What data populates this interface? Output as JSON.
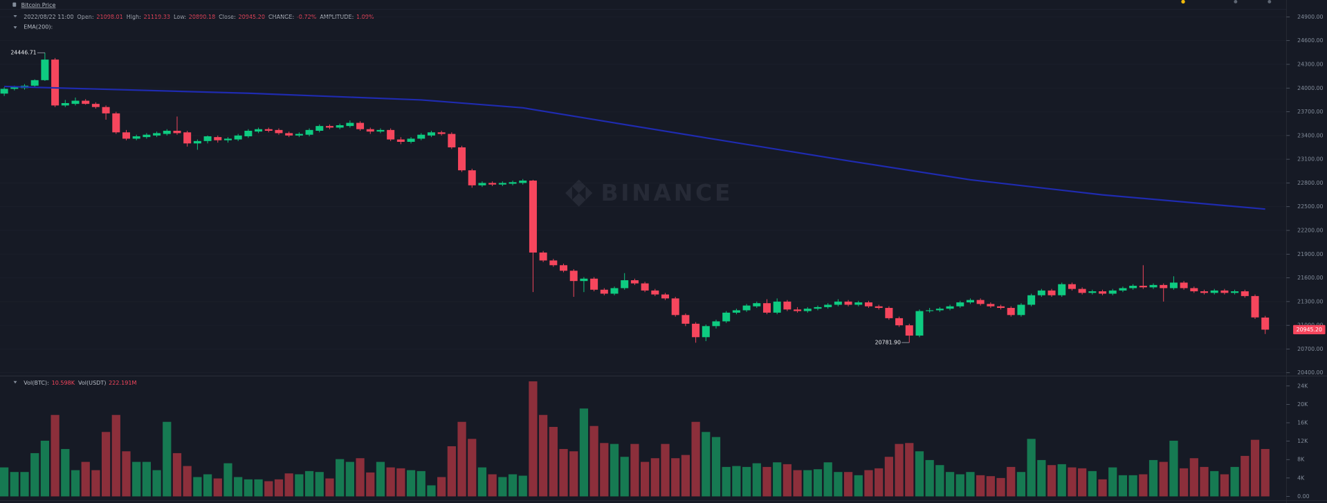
{
  "header": {
    "title": "Bitcoin Price",
    "datetime": "2022/08/22 11:00",
    "fields": [
      {
        "label": "Open:",
        "value": "21098.01"
      },
      {
        "label": "High:",
        "value": "21119.33"
      },
      {
        "label": "Low:",
        "value": "20890.18"
      },
      {
        "label": "Close:",
        "value": "20945.20"
      },
      {
        "label": "CHANGE:",
        "value": "-0.72%"
      },
      {
        "label": "AMPLITUDE:",
        "value": "1.09%"
      }
    ],
    "indicator": "EMA(200):",
    "watermark": "BINANCE"
  },
  "chart_data": [
    {
      "type": "candlestick",
      "up_color": "#0ecb81",
      "down_color": "#f6465d",
      "ylim": [
        20370,
        24985
      ],
      "yticks": [
        {
          "value": 20400,
          "label": "20400.00"
        },
        {
          "value": 20700,
          "label": "20700.00"
        },
        {
          "value": 21000,
          "label": "21000.00"
        },
        {
          "value": 21300,
          "label": "21300.00"
        },
        {
          "value": 21600,
          "label": "21600.00"
        },
        {
          "value": 21900,
          "label": "21900.00"
        },
        {
          "value": 22200,
          "label": "22200.00"
        },
        {
          "value": 22500,
          "label": "22500.00"
        },
        {
          "value": 22800,
          "label": "22800.00"
        },
        {
          "value": 23100,
          "label": "23100.00"
        },
        {
          "value": 23400,
          "label": "23400.00"
        },
        {
          "value": 23700,
          "label": "23700.00"
        },
        {
          "value": 24000,
          "label": "24000.00"
        },
        {
          "value": 24300,
          "label": "24300.00"
        },
        {
          "value": 24600,
          "label": "24600.00"
        },
        {
          "value": 24900,
          "label": "24900.00"
        }
      ],
      "grid": true,
      "candles": [
        [
          23930,
          24010,
          23900,
          23990
        ],
        [
          23990,
          24030,
          23970,
          24010
        ],
        [
          24000,
          24050,
          23980,
          24030
        ],
        [
          24030,
          24110,
          24010,
          24100
        ],
        [
          24100,
          24446.71,
          24090,
          24360
        ],
        [
          24360,
          24380,
          23760,
          23780
        ],
        [
          23780,
          23850,
          23760,
          23810
        ],
        [
          23800,
          23880,
          23780,
          23840
        ],
        [
          23840,
          23860,
          23790,
          23800
        ],
        [
          23800,
          23820,
          23740,
          23760
        ],
        [
          23760,
          23780,
          23600,
          23680
        ],
        [
          23680,
          23700,
          23420,
          23440
        ],
        [
          23440,
          23470,
          23340,
          23360
        ],
        [
          23360,
          23410,
          23340,
          23390
        ],
        [
          23380,
          23430,
          23360,
          23410
        ],
        [
          23400,
          23450,
          23380,
          23430
        ],
        [
          23420,
          23480,
          23400,
          23460
        ],
        [
          23460,
          23640,
          23410,
          23430
        ],
        [
          23440,
          23460,
          23260,
          23300
        ],
        [
          23300,
          23350,
          23220,
          23330
        ],
        [
          23330,
          23400,
          23300,
          23390
        ],
        [
          23380,
          23400,
          23310,
          23340
        ],
        [
          23340,
          23380,
          23310,
          23360
        ],
        [
          23350,
          23420,
          23330,
          23400
        ],
        [
          23390,
          23480,
          23370,
          23460
        ],
        [
          23450,
          23500,
          23430,
          23480
        ],
        [
          23480,
          23500,
          23440,
          23460
        ],
        [
          23470,
          23490,
          23410,
          23430
        ],
        [
          23430,
          23450,
          23380,
          23400
        ],
        [
          23400,
          23440,
          23380,
          23420
        ],
        [
          23410,
          23490,
          23390,
          23470
        ],
        [
          23460,
          23540,
          23440,
          23520
        ],
        [
          23520,
          23540,
          23480,
          23500
        ],
        [
          23500,
          23550,
          23480,
          23530
        ],
        [
          23520,
          23590,
          23500,
          23560
        ],
        [
          23560,
          23580,
          23460,
          23480
        ],
        [
          23480,
          23500,
          23420,
          23450
        ],
        [
          23450,
          23490,
          23430,
          23470
        ],
        [
          23470,
          23490,
          23330,
          23350
        ],
        [
          23350,
          23380,
          23290,
          23320
        ],
        [
          23320,
          23380,
          23300,
          23360
        ],
        [
          23360,
          23430,
          23340,
          23410
        ],
        [
          23400,
          23460,
          23380,
          23440
        ],
        [
          23440,
          23460,
          23400,
          23420
        ],
        [
          23420,
          23440,
          23230,
          23250
        ],
        [
          23250,
          23270,
          22940,
          22960
        ],
        [
          22960,
          22980,
          22740,
          22770
        ],
        [
          22770,
          22820,
          22750,
          22800
        ],
        [
          22800,
          22820,
          22760,
          22780
        ],
        [
          22780,
          22820,
          22760,
          22800
        ],
        [
          22790,
          22830,
          22770,
          22810
        ],
        [
          22800,
          22850,
          22780,
          22830
        ],
        [
          22830,
          22840,
          21420,
          21920
        ],
        [
          21920,
          21940,
          21800,
          21820
        ],
        [
          21820,
          21840,
          21740,
          21760
        ],
        [
          21760,
          21780,
          21670,
          21690
        ],
        [
          21690,
          21710,
          21360,
          21560
        ],
        [
          21560,
          21610,
          21420,
          21590
        ],
        [
          21590,
          21610,
          21430,
          21450
        ],
        [
          21450,
          21470,
          21380,
          21400
        ],
        [
          21400,
          21490,
          21380,
          21470
        ],
        [
          21470,
          21660,
          21450,
          21570
        ],
        [
          21570,
          21590,
          21510,
          21530
        ],
        [
          21530,
          21550,
          21420,
          21440
        ],
        [
          21440,
          21460,
          21370,
          21390
        ],
        [
          21390,
          21410,
          21320,
          21340
        ],
        [
          21340,
          21360,
          21110,
          21130
        ],
        [
          21130,
          21150,
          20990,
          21020
        ],
        [
          21020,
          21040,
          20780,
          20850
        ],
        [
          20850,
          21010,
          20800,
          20990
        ],
        [
          20990,
          21070,
          20960,
          21050
        ],
        [
          21050,
          21180,
          21030,
          21160
        ],
        [
          21160,
          21210,
          21140,
          21190
        ],
        [
          21190,
          21270,
          21170,
          21250
        ],
        [
          21240,
          21300,
          21220,
          21280
        ],
        [
          21280,
          21330,
          21140,
          21160
        ],
        [
          21160,
          21340,
          21140,
          21300
        ],
        [
          21300,
          21320,
          21180,
          21200
        ],
        [
          21200,
          21230,
          21160,
          21180
        ],
        [
          21180,
          21230,
          21160,
          21210
        ],
        [
          21210,
          21250,
          21190,
          21230
        ],
        [
          21230,
          21280,
          21210,
          21260
        ],
        [
          21260,
          21330,
          21240,
          21300
        ],
        [
          21300,
          21320,
          21240,
          21260
        ],
        [
          21260,
          21310,
          21240,
          21290
        ],
        [
          21290,
          21310,
          21220,
          21240
        ],
        [
          21240,
          21260,
          21200,
          21220
        ],
        [
          21220,
          21240,
          21070,
          21090
        ],
        [
          21090,
          21110,
          20980,
          21000
        ],
        [
          21000,
          21020,
          20781.9,
          20870
        ],
        [
          20870,
          21200,
          20850,
          21180
        ],
        [
          21180,
          21220,
          21160,
          21190
        ],
        [
          21190,
          21230,
          21170,
          21210
        ],
        [
          21210,
          21260,
          21190,
          21240
        ],
        [
          21240,
          21310,
          21220,
          21290
        ],
        [
          21290,
          21340,
          21270,
          21320
        ],
        [
          21320,
          21340,
          21250,
          21270
        ],
        [
          21270,
          21290,
          21220,
          21240
        ],
        [
          21240,
          21260,
          21200,
          21220
        ],
        [
          21220,
          21240,
          21110,
          21130
        ],
        [
          21130,
          21280,
          21110,
          21260
        ],
        [
          21260,
          21400,
          21240,
          21380
        ],
        [
          21380,
          21460,
          21360,
          21440
        ],
        [
          21440,
          21460,
          21360,
          21380
        ],
        [
          21380,
          21540,
          21360,
          21520
        ],
        [
          21520,
          21540,
          21440,
          21460
        ],
        [
          21460,
          21480,
          21390,
          21410
        ],
        [
          21410,
          21450,
          21390,
          21430
        ],
        [
          21430,
          21450,
          21380,
          21400
        ],
        [
          21400,
          21460,
          21380,
          21440
        ],
        [
          21440,
          21490,
          21420,
          21470
        ],
        [
          21470,
          21520,
          21450,
          21500
        ],
        [
          21500,
          21760,
          21460,
          21480
        ],
        [
          21480,
          21530,
          21460,
          21510
        ],
        [
          21510,
          21530,
          21300,
          21470
        ],
        [
          21470,
          21620,
          21450,
          21540
        ],
        [
          21540,
          21560,
          21450,
          21470
        ],
        [
          21470,
          21490,
          21410,
          21430
        ],
        [
          21430,
          21450,
          21390,
          21410
        ],
        [
          21410,
          21460,
          21390,
          21440
        ],
        [
          21440,
          21460,
          21390,
          21410
        ],
        [
          21410,
          21450,
          21390,
          21430
        ],
        [
          21430,
          21450,
          21350,
          21370
        ],
        [
          21370,
          21390,
          21080,
          21100
        ],
        [
          21098.01,
          21119.33,
          20890.18,
          20945.2
        ]
      ],
      "ema": {
        "name": "EMA(200)",
        "color": "#1f2bb0",
        "x": [
          0,
          24,
          41,
          51,
          60,
          70,
          83,
          95,
          108,
          124
        ],
        "values": [
          24020,
          23935,
          23850,
          23750,
          23560,
          23350,
          23080,
          22840,
          22650,
          22470
        ]
      },
      "annotations": [
        {
          "value": 24446.71,
          "label": "24446.71"
        },
        {
          "value": 20781.9,
          "label": "20781.90"
        }
      ],
      "last_price": {
        "value": 20945.2,
        "label": "20945.20"
      }
    },
    {
      "type": "bar",
      "up_color": "#167a52",
      "down_color": "#8c2f3b",
      "legend": [
        {
          "label": "Vol(BTC):",
          "value": "10.598K"
        },
        {
          "label": "Vol(USDT)",
          "value": "222.191M"
        }
      ],
      "ylim": [
        -700,
        25800
      ],
      "yticks": [
        {
          "value": 0,
          "label": "0.00"
        },
        {
          "value": 4000,
          "label": "4K"
        },
        {
          "value": 8000,
          "label": "8K"
        },
        {
          "value": 12000,
          "label": "12K"
        },
        {
          "value": 16000,
          "label": "16K"
        },
        {
          "value": 20000,
          "label": "20K"
        },
        {
          "value": 24000,
          "label": "24K"
        }
      ],
      "values": [
        6300,
        5300,
        5300,
        9400,
        12100,
        17700,
        10300,
        5700,
        7500,
        5700,
        14000,
        17700,
        9800,
        7500,
        7500,
        5700,
        16200,
        9400,
        6600,
        4200,
        4800,
        3900,
        7200,
        4200,
        3700,
        3700,
        3300,
        3700,
        5000,
        4800,
        5500,
        5300,
        3900,
        8100,
        7500,
        8300,
        5200,
        7500,
        6300,
        6100,
        5700,
        5500,
        2400,
        4200,
        10900,
        16200,
        12500,
        6300,
        4800,
        4200,
        4800,
        4500,
        25000,
        17700,
        15100,
        10300,
        9800,
        19100,
        15300,
        11600,
        11400,
        8600,
        11400,
        7500,
        8300,
        11400,
        8300,
        9000,
        16200,
        14000,
        12900,
        6400,
        6600,
        6400,
        7200,
        6400,
        7400,
        7000,
        5700,
        5700,
        5900,
        7400,
        5300,
        5300,
        4600,
        5700,
        6100,
        8600,
        11400,
        11600,
        9800,
        7900,
        6800,
        5300,
        4800,
        5300,
        4600,
        4400,
        4000,
        6400,
        5300,
        12500,
        7900,
        6800,
        7000,
        6300,
        6100,
        5500,
        3700,
        6300,
        4600,
        4600,
        4800,
        7900,
        7500,
        12100,
        6100,
        8300,
        6400,
        5500,
        4800,
        6400,
        8800,
        12300,
        10300
      ]
    }
  ]
}
